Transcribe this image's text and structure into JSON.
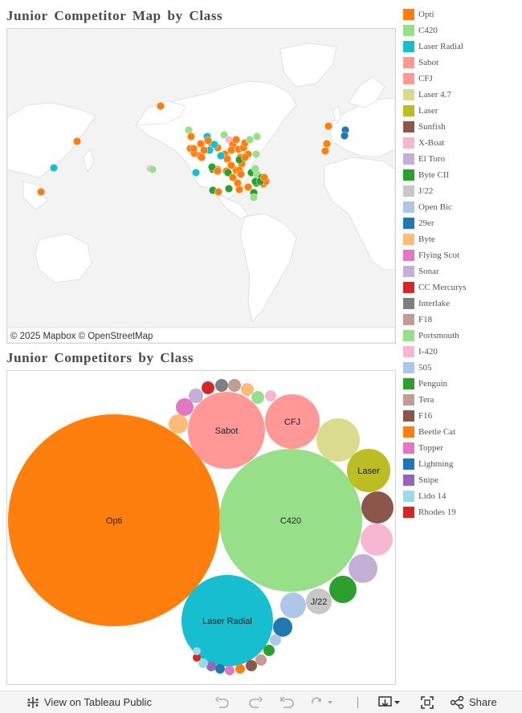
{
  "titles": {
    "map": "Junior Competitor Map by Class",
    "bubbles": "Junior Competitors by Class"
  },
  "map": {
    "credit": "© 2025 Mapbox © OpenStreetMap"
  },
  "legend": [
    {
      "label": "Opti",
      "color": "#ff7f0e"
    },
    {
      "label": "C420",
      "color": "#98df8a"
    },
    {
      "label": "Laser Radial",
      "color": "#17becf"
    },
    {
      "label": "Sabot",
      "color": "#ff9896"
    },
    {
      "label": "CFJ",
      "color": "#ff9896"
    },
    {
      "label": "Laser 4.7",
      "color": "#dbdb8d"
    },
    {
      "label": "Laser",
      "color": "#bcbd22"
    },
    {
      "label": "Sunfish",
      "color": "#8c564b"
    },
    {
      "label": "X-Boat",
      "color": "#f7b6d2"
    },
    {
      "label": "El Toro",
      "color": "#c5b0d5"
    },
    {
      "label": "Byte CII",
      "color": "#2ca02c"
    },
    {
      "label": "J/22",
      "color": "#c7c7c7"
    },
    {
      "label": "Open Bic",
      "color": "#aec7e8"
    },
    {
      "label": "29er",
      "color": "#1f77b4"
    },
    {
      "label": "Byte",
      "color": "#ffbb78"
    },
    {
      "label": "Flying Scot",
      "color": "#e377c2"
    },
    {
      "label": "Sonar",
      "color": "#c5b0d5"
    },
    {
      "label": "CC Mercurys",
      "color": "#d62728"
    },
    {
      "label": "Interlake",
      "color": "#7f7f7f"
    },
    {
      "label": "F18",
      "color": "#c49c94"
    },
    {
      "label": "Portsmouth",
      "color": "#98df8a"
    },
    {
      "label": "I-420",
      "color": "#f7b6d2"
    },
    {
      "label": "505",
      "color": "#aec7e8"
    },
    {
      "label": "Penguin",
      "color": "#2ca02c"
    },
    {
      "label": "Tera",
      "color": "#c49c94"
    },
    {
      "label": "F16",
      "color": "#8c564b"
    },
    {
      "label": "Beetle Cat",
      "color": "#ff7f0e"
    },
    {
      "label": "Topper",
      "color": "#e377c2"
    },
    {
      "label": "Lightning",
      "color": "#1f77b4"
    },
    {
      "label": "Snipe",
      "color": "#9467bd"
    },
    {
      "label": "Lido 14",
      "color": "#9edae5"
    },
    {
      "label": "Rhodes 19",
      "color": "#d62728"
    }
  ],
  "chart_data": {
    "type": "packed-bubble",
    "title": "Junior Competitors by Class",
    "bubble_labels": {
      "Opti": "Opti",
      "C420": "C420",
      "Laser Radial": "Laser Radial",
      "Sabot": "Sabot",
      "CFJ": "CFJ",
      "Laser": "Laser",
      "J/22": "J/22"
    },
    "relative_size_estimate": [
      {
        "class": "Opti",
        "value": 100
      },
      {
        "class": "C420",
        "value": 46
      },
      {
        "class": "Laser Radial",
        "value": 18.7
      },
      {
        "class": "Sabot",
        "value": 13.1
      },
      {
        "class": "CFJ",
        "value": 6.4
      },
      {
        "class": "Laser 4.7",
        "value": 4.2
      },
      {
        "class": "Laser",
        "value": 4.1
      },
      {
        "class": "Sunfish",
        "value": 2.4
      },
      {
        "class": "X-Boat",
        "value": 2.2
      },
      {
        "class": "El Toro",
        "value": 1.9
      },
      {
        "class": "Byte CII",
        "value": 1.8
      },
      {
        "class": "J/22",
        "value": 1.4
      },
      {
        "class": "Open Bic",
        "value": 1.4
      },
      {
        "class": "29er",
        "value": 0.8
      }
    ]
  },
  "toolbar": {
    "view_label": "View on Tableau Public",
    "share_label": "Share"
  }
}
